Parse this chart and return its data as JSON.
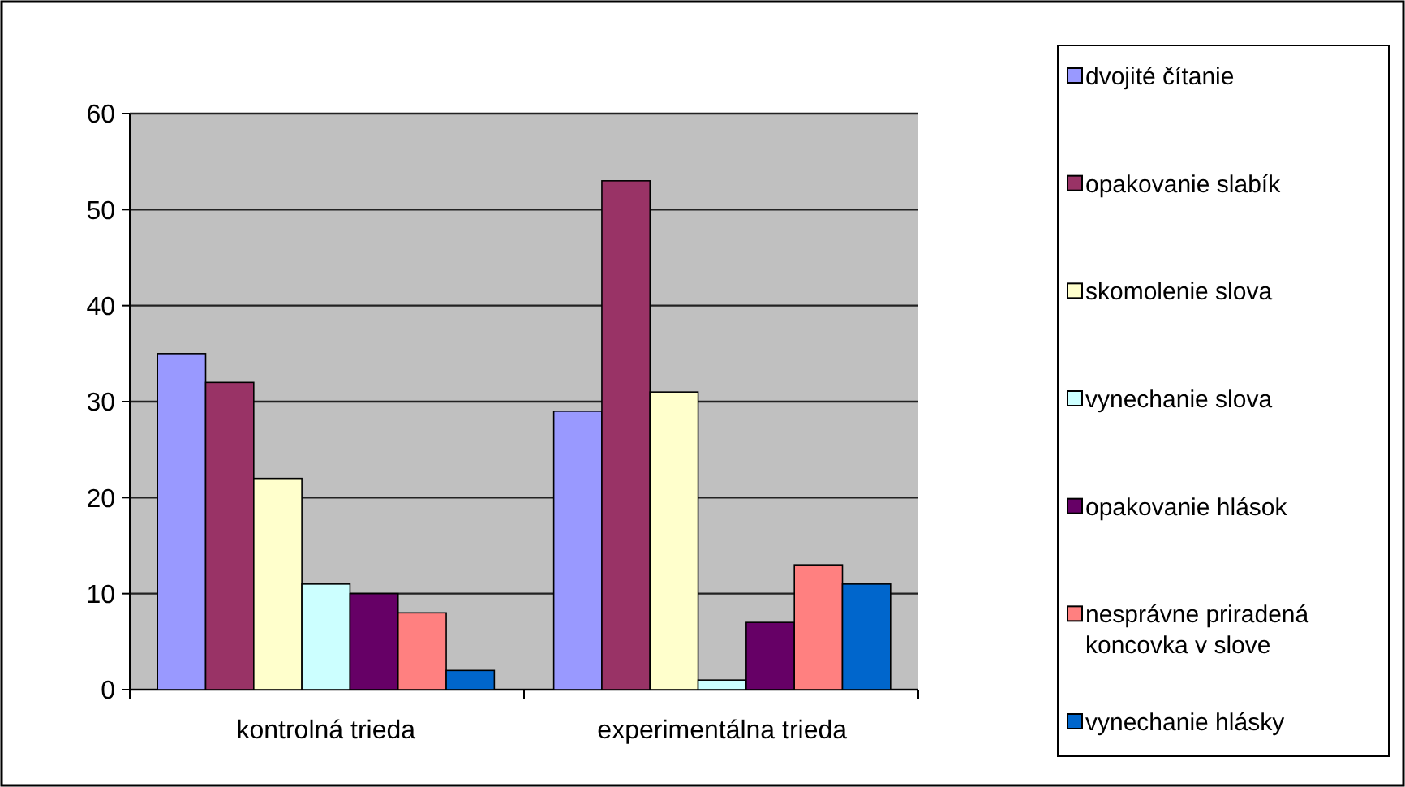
{
  "chart_data": {
    "type": "bar",
    "categories": [
      "kontrolná trieda",
      "experimentálna trieda"
    ],
    "series": [
      {
        "name": "dvojité čítanie",
        "color": "#9999ff",
        "values": [
          35,
          29
        ]
      },
      {
        "name": "opakovanie slabík",
        "color": "#993366",
        "values": [
          32,
          53
        ]
      },
      {
        "name": "skomolenie slova",
        "color": "#ffffcc",
        "values": [
          22,
          31
        ]
      },
      {
        "name": "vynechanie slova",
        "color": "#ccffff",
        "values": [
          11,
          1
        ]
      },
      {
        "name": "opakovanie hlások",
        "color": "#660066",
        "values": [
          10,
          7
        ]
      },
      {
        "name": "nesprávne priradená koncovka v slove",
        "color": "#ff8080",
        "values": [
          8,
          13
        ]
      },
      {
        "name": "vynechanie hlásky",
        "color": "#0066cc",
        "values": [
          2,
          11
        ]
      }
    ],
    "ylim": [
      0,
      60
    ],
    "yticks": [
      0,
      10,
      20,
      30,
      40,
      50,
      60
    ],
    "grid": "y",
    "legend": "right"
  }
}
